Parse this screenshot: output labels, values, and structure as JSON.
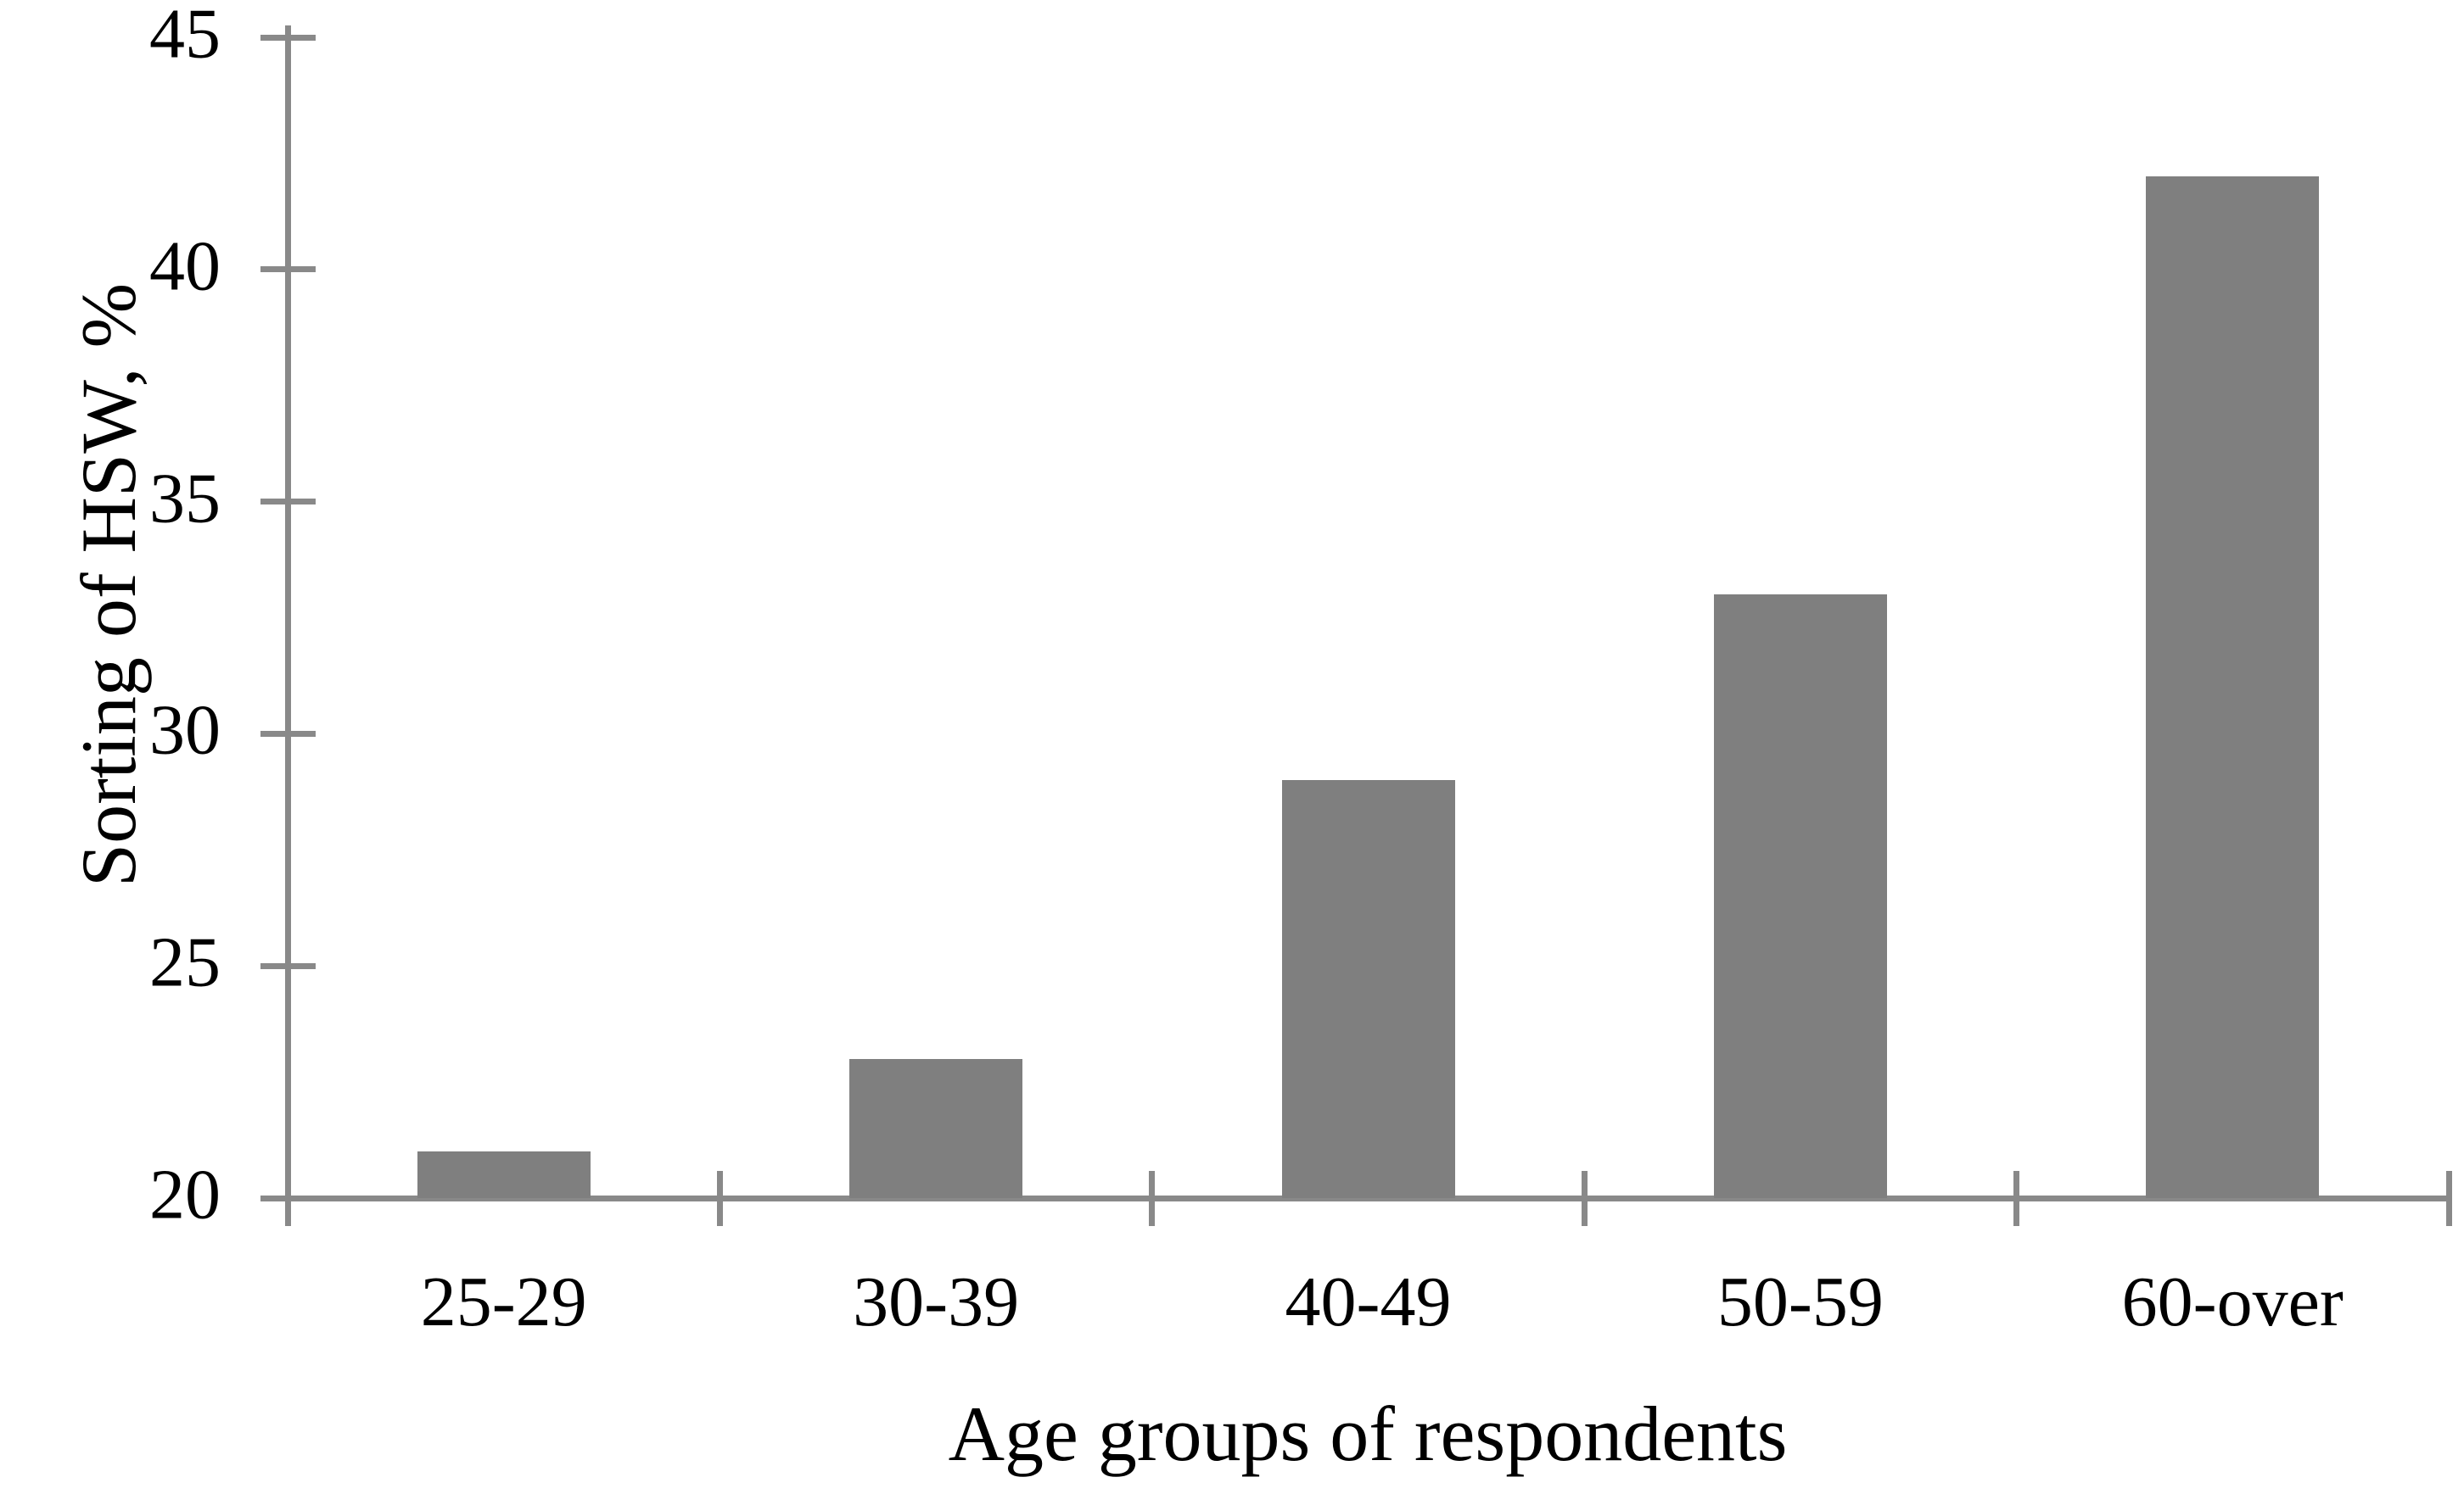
{
  "chart_data": {
    "type": "bar",
    "categories": [
      "25-29",
      "30-39",
      "40-49",
      "50-59",
      "60-over"
    ],
    "values": [
      21,
      23,
      29,
      33,
      42
    ],
    "title": "",
    "xlabel": "Age groups of respondents",
    "ylabel": "Sorting of HSW, %",
    "ylim": [
      20,
      45
    ],
    "yticks": [
      20,
      25,
      30,
      35,
      40,
      45
    ],
    "grid": false,
    "legend_position": "none",
    "bar_color": "#7f7f7f",
    "axis_color": "#898989",
    "text_color": "#000000",
    "background_color": "#ffffff"
  }
}
